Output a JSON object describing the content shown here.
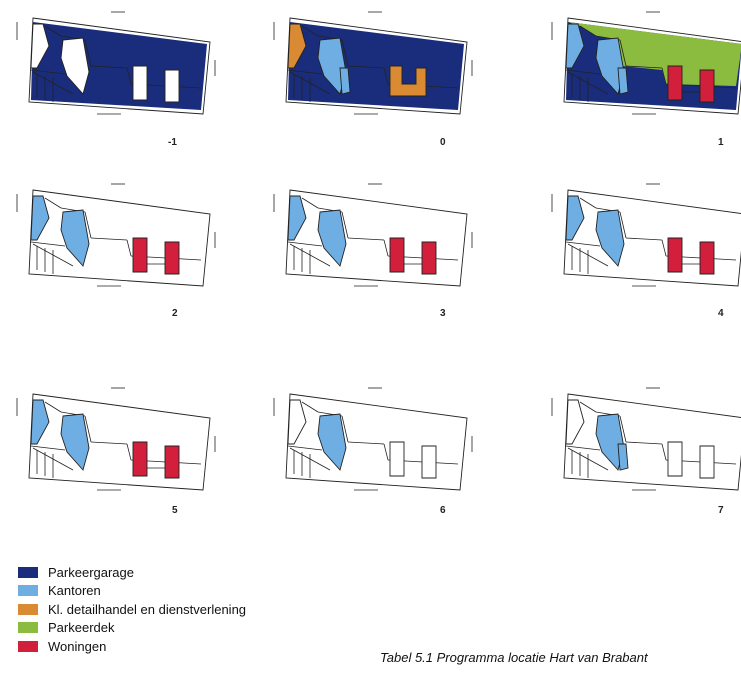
{
  "levels": [
    {
      "label": "-1",
      "fills": {
        "garage": "#1a2d7c",
        "office_left": null,
        "office_mid": null,
        "office_small": null,
        "shops": null,
        "deck": null,
        "homes": null
      }
    },
    {
      "label": "0",
      "fills": {
        "garage": "#1a2d7c",
        "office_left": "#d98a32",
        "office_mid": "#6faee3",
        "office_small": "#6faee3",
        "shops": "#d98a32",
        "deck": null,
        "homes": null
      }
    },
    {
      "label": "1",
      "fills": {
        "garage": "#1a2d7c",
        "office_left": "#6faee3",
        "office_mid": "#6faee3",
        "office_small": "#6faee3",
        "shops": null,
        "deck": "#8cbc3f",
        "homes": "#d21f3c"
      }
    },
    {
      "label": "2",
      "fills": {
        "garage": null,
        "office_left": "#6faee3",
        "office_mid": "#6faee3",
        "office_small": null,
        "shops": null,
        "deck": null,
        "homes": "#d21f3c"
      }
    },
    {
      "label": "3",
      "fills": {
        "garage": null,
        "office_left": "#6faee3",
        "office_mid": "#6faee3",
        "office_small": null,
        "shops": null,
        "deck": null,
        "homes": "#d21f3c"
      }
    },
    {
      "label": "4",
      "fills": {
        "garage": null,
        "office_left": "#6faee3",
        "office_mid": "#6faee3",
        "office_small": null,
        "shops": null,
        "deck": null,
        "homes": "#d21f3c"
      }
    },
    {
      "label": "5",
      "fills": {
        "garage": null,
        "office_left": "#6faee3",
        "office_mid": "#6faee3",
        "office_small": null,
        "shops": null,
        "deck": null,
        "homes": "#d21f3c"
      }
    },
    {
      "label": "6",
      "fills": {
        "garage": null,
        "office_left": null,
        "office_mid": "#6faee3",
        "office_small": null,
        "shops": null,
        "deck": null,
        "homes": null
      }
    },
    {
      "label": "7",
      "fills": {
        "garage": null,
        "office_left": null,
        "office_mid": "#6faee3",
        "office_small": "#6faee3",
        "shops": null,
        "deck": null,
        "homes": null
      }
    }
  ],
  "legend": [
    {
      "label": "Parkeergarage",
      "color": "#1a2d7c"
    },
    {
      "label": "Kantoren",
      "color": "#6faee3"
    },
    {
      "label": "Kl. detailhandel en dienstverlening",
      "color": "#d98a32"
    },
    {
      "label": "Parkeerdek",
      "color": "#8cbc3f"
    },
    {
      "label": "Woningen",
      "color": "#d21f3c"
    }
  ],
  "caption": "Tabel 5.1  Programma locatie Hart van Brabant"
}
